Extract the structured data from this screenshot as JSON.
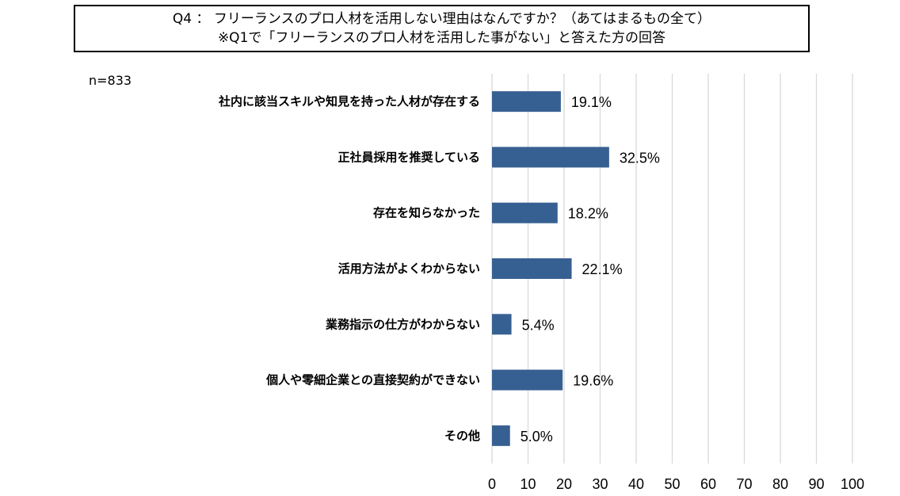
{
  "title": {
    "line1": "Q4 ： フリーランスのプロ人材を活用しない理由はなんですか？（あてはまるもの全て）",
    "line2": "※Q1で「フリーランスのプロ人材を活用した事がない」と答えた方の回答"
  },
  "sample_size": "n=833",
  "chart_data": {
    "type": "bar",
    "orientation": "horizontal",
    "categories": [
      "社内に該当スキルや知見を持った人材が存在する",
      "正社員採用を推奨している",
      "存在を知らなかった",
      "活用方法がよくわからない",
      "業務指示の仕方がわからない",
      "個人や零細企業との直接契約ができない",
      "その他"
    ],
    "values": [
      19.1,
      32.5,
      18.2,
      22.1,
      5.4,
      19.6,
      5.0
    ],
    "value_labels": [
      "19.1%",
      "32.5%",
      "18.2%",
      "22.1%",
      "5.4%",
      "19.6%",
      "5.0%"
    ],
    "xlim": [
      0,
      100
    ],
    "xticks": [
      "0",
      "10",
      "20",
      "30",
      "40",
      "50",
      "60",
      "70",
      "80",
      "90",
      "100"
    ],
    "grid": "vertical",
    "bar_color": "#376092",
    "grid_color": "#d9d9d9"
  }
}
